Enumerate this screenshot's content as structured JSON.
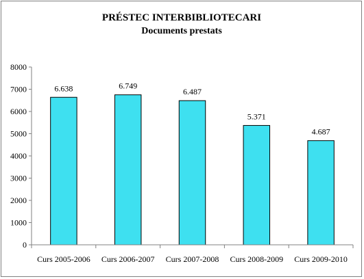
{
  "chart_data": {
    "type": "bar",
    "title": "PRÉSTEC INTERBIBLIOTECARI",
    "subtitle": "Documents prestats",
    "categories": [
      "Curs 2005-2006",
      "Curs 2006-2007",
      "Curs 2007-2008",
      "Curs 2008-2009",
      "Curs 2009-2010"
    ],
    "values": [
      6638,
      6749,
      6487,
      5371,
      4687
    ],
    "data_labels": [
      "6.638",
      "6.749",
      "6.487",
      "5.371",
      "4.687"
    ],
    "ylim": [
      0,
      8000
    ],
    "yticks": [
      0,
      1000,
      2000,
      3000,
      4000,
      5000,
      6000,
      7000,
      8000
    ],
    "ytick_labels": [
      "0",
      "1000",
      "2000",
      "3000",
      "4000",
      "5000",
      "6000",
      "7000",
      "8000"
    ],
    "grid": false,
    "legend": "none",
    "bar_color": "#3EE0F0"
  }
}
